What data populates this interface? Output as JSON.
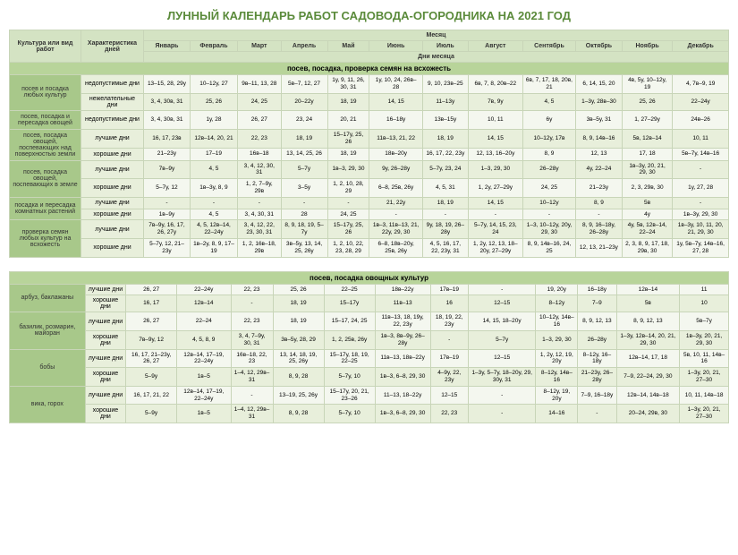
{
  "title": "ЛУННЫЙ КАЛЕНДАРЬ РАБОТ САДОВОДА-ОГОРОДНИКА НА 2021 ГОД",
  "headers": {
    "culture": "Культура или вид работ",
    "characteristic": "Характеристика дней",
    "month": "Месяц",
    "daysOfMonth": "Дни месяца",
    "months": [
      "Январь",
      "Февраль",
      "Март",
      "Апрель",
      "Май",
      "Июнь",
      "Июль",
      "Август",
      "Сентябрь",
      "Октябрь",
      "Ноябрь",
      "Декабрь"
    ]
  },
  "section1": {
    "title": "посев, посадка, проверка семян на всхожесть",
    "groups": [
      {
        "label": "посев и посадка любых культур",
        "rows": [
          {
            "char": "недопустимые дни",
            "cells": [
              "13–15, 28, 29у",
              "10–12у, 27",
              "9в–11, 13, 28",
              "5в–7, 12, 27",
              "1у, 9, 11, 26, 30, 31",
              "1у, 10, 24, 26в–28",
              "9, 10, 23в–25",
              "6в, 7, 8, 20в–22",
              "6в, 7, 17, 18, 20в, 21",
              "6, 14, 15, 20",
              "4в, 5у, 10–12у, 19",
              "4, 7в–9, 19"
            ]
          },
          {
            "char": "нежелательные дни",
            "cells": [
              "3, 4, 30в, 31",
              "25, 26",
              "24, 25",
              "20–22у",
              "18, 19",
              "14, 15",
              "11–13у",
              "7в, 9у",
              "4, 5",
              "1–3у, 28в–30",
              "25, 26",
              "22–24у"
            ]
          }
        ]
      },
      {
        "label": "посев, посадка и пересадка овощей",
        "rows": [
          {
            "char": "недопустимые дни",
            "cells": [
              "3, 4, 30в, 31",
              "1у, 28",
              "26, 27",
              "23, 24",
              "20, 21",
              "16–18у",
              "13в–15у",
              "10, 11",
              "6у",
              "3в–5у, 31",
              "1, 27–29у",
              "24в–26"
            ]
          }
        ]
      },
      {
        "label": "посев, посадка овощей, поспевающих над поверхностью земли",
        "rows": [
          {
            "char": "лучшие дни",
            "cells": [
              "16, 17, 23в",
              "12в–14, 20, 21",
              "22, 23",
              "18, 19",
              "15–17у, 25, 26",
              "11в–13, 21, 22",
              "18, 19",
              "14, 15",
              "10–12у, 17в",
              "8, 9, 14в–16",
              "5в, 12в–14",
              "10, 11"
            ]
          },
          {
            "char": "хорошие дни",
            "cells": [
              "21–23у",
              "17–19",
              "16в–18",
              "13, 14, 25, 26",
              "18, 19",
              "18в–20у",
              "16, 17, 22, 23у",
              "12, 13, 16–20у",
              "8, 9",
              "12, 13",
              "17, 18",
              "5в–7у, 14в–16"
            ]
          }
        ]
      },
      {
        "label": "посев, посадка овощей, поспевающих в земле",
        "rows": [
          {
            "char": "лучшие дни",
            "cells": [
              "7в–9у",
              "4, 5",
              "3, 4, 12, 30, 31",
              "5–7у",
              "1в–3, 29, 30",
              "9у, 26–28у",
              "5–7у, 23, 24",
              "1–3, 29, 30",
              "26–28у",
              "4у, 22–24",
              "1в–3у, 20, 21, 29, 30",
              "-"
            ]
          },
          {
            "char": "хорошие дни",
            "cells": [
              "5–7у, 12",
              "1в–3у, 8, 9",
              "1, 2, 7–9у, 29в",
              "3–5у",
              "1, 2, 10, 28, 29",
              "6–8, 25в, 26у",
              "4, 5, 31",
              "1, 2у, 27–29у",
              "24, 25",
              "21–23у",
              "2, 3, 29в, 30",
              "1у, 27, 28"
            ]
          }
        ]
      },
      {
        "label": "посадка и пересадка комнатных растений",
        "rows": [
          {
            "char": "лучшие дни",
            "cells": [
              "-",
              "-",
              "-",
              "-",
              "-",
              "21, 22у",
              "18, 19",
              "14, 15",
              "10–12у",
              "8, 9",
              "5в",
              "-"
            ]
          },
          {
            "char": "хорошие дни",
            "cells": [
              "1в–9у",
              "4, 5",
              "3, 4, 30, 31",
              "28",
              "24, 25",
              "-",
              "-",
              "-",
              "-",
              "-",
              "4у",
              "1в–3у, 29, 30"
            ]
          }
        ]
      },
      {
        "label": "проверка семян любых культур на всхожесть",
        "rows": [
          {
            "char": "лучшие дни",
            "cells": [
              "7в–9у, 16, 17, 26, 27у",
              "4, 5, 12в–14, 22–24у",
              "3, 4, 12, 22, 23, 30, 31",
              "8, 9, 18, 19, 5–7у",
              "15–17у, 25, 26",
              "1в–3, 11в–13, 21, 22у, 29, 30",
              "9у, 18, 19, 26–28у",
              "5–7у, 14, 15, 23, 24",
              "1–3, 10–12у, 20у, 29, 30",
              "8, 9, 16–18у, 26–28у",
              "4у, 5в, 12в–14, 22–24",
              "1в–3у, 10, 11, 20, 21, 29, 30"
            ]
          },
          {
            "char": "хорошие дни",
            "cells": [
              "5–7у, 12, 21–23у",
              "1в–2у, 8, 9, 17–19",
              "1, 2, 16в–18, 29в",
              "3в–5у, 13, 14, 25, 26у",
              "1, 2, 10, 22, 23, 28, 29",
              "6–8, 18в–20у, 25в, 26у",
              "4, 5, 16, 17, 22, 23у, 31",
              "1, 2у, 12, 13, 18–20у, 27–29у",
              "8, 9, 14в–16, 24, 25",
              "12, 13, 21–23у",
              "2, 3, 8, 9, 17, 18, 29в, 30",
              "1у, 5в–7у, 14в–16, 27, 28"
            ]
          }
        ]
      }
    ]
  },
  "section2": {
    "title": "посев, посадка овощных культур",
    "groups": [
      {
        "label": "арбуз, баклажаны",
        "rows": [
          {
            "char": "лучшие дни",
            "cells": [
              "26, 27",
              "22–24у",
              "22, 23",
              "25, 26",
              "22–25",
              "18в–22у",
              "17в–19",
              "-",
              "19, 20у",
              "16–18у",
              "12в–14",
              "11"
            ]
          },
          {
            "char": "хорошие дни",
            "cells": [
              "16, 17",
              "12в–14",
              "-",
              "18, 19",
              "15–17у",
              "11в–13",
              "16",
              "12–15",
              "8–12у",
              "7–9",
              "5в",
              "10"
            ]
          }
        ]
      },
      {
        "label": "базилик, розмарин, майоран",
        "rows": [
          {
            "char": "лучшие дни",
            "cells": [
              "26, 27",
              "22–24",
              "22, 23",
              "18, 19",
              "15–17, 24, 25",
              "11в–13, 18, 19у, 22, 23у",
              "18, 19, 22, 23у",
              "14, 15, 18–20у",
              "10–12у, 14в–16",
              "8, 9, 12, 13",
              "8, 9, 12, 13",
              "5в–7у"
            ]
          },
          {
            "char": "хорошие дни",
            "cells": [
              "7в–9у, 12",
              "4, 5, 8, 9",
              "3, 4, 7–9у, 30, 31",
              "3в–5у, 28, 29",
              "1, 2, 25в, 26у",
              "1в–3, 8в–9у, 26–28у",
              "-",
              "5–7у",
              "1–3, 29, 30",
              "26–28у",
              "1–3у, 12в–14, 20, 21, 29, 30",
              "1в–3у, 20, 21, 29, 30"
            ]
          }
        ]
      },
      {
        "label": "бобы",
        "rows": [
          {
            "char": "лучшие дни",
            "cells": [
              "16, 17, 21–23у, 26, 27",
              "12в–14, 17–19, 22–24у",
              "16в–18, 22, 23",
              "13, 14, 18, 19, 25, 26у",
              "15–17у, 18, 19, 22–25",
              "11в–13, 18в–22у",
              "17в–19",
              "12–15",
              "1, 2у, 12, 19, 20у",
              "8–12у, 16–18у",
              "12в–14, 17, 18",
              "5в, 10, 11, 14в–16"
            ]
          },
          {
            "char": "хорошие дни",
            "cells": [
              "5–9у",
              "1в–5",
              "1–4, 12, 29в–31",
              "8, 9, 28",
              "5–7у, 10",
              "1в–3, 6–8, 29, 30",
              "4–9у, 22, 23у",
              "1–3у, 5–7у, 18–20у, 29, 30у, 31",
              "8–12у, 14в–16",
              "21–23у, 26–28у",
              "7–9, 22–24, 29, 30",
              "1–3у, 20, 21, 27–30"
            ]
          }
        ]
      },
      {
        "label": "вика, горох",
        "rows": [
          {
            "char": "лучшие дни",
            "cells": [
              "16, 17, 21, 22",
              "12в–14, 17–19, 22–24у",
              "-",
              "13–19, 25, 26у",
              "15–17у, 20, 21, 23–26",
              "11–13, 18–22у",
              "12–15",
              "-",
              "8–12у, 19, 20у",
              "7–9, 16–18у",
              "12в–14, 14в–18",
              "10, 11, 14в–18"
            ]
          },
          {
            "char": "хорошие дни",
            "cells": [
              "5–9у",
              "1в–5",
              "1–4, 12, 29в–31",
              "8, 9, 28",
              "5–7у, 10",
              "1в–3, 6–8, 29, 30",
              "22, 23",
              "-",
              "14–16",
              "-",
              "20–24, 29в, 30",
              "1–3у, 20, 21, 27–30"
            ]
          }
        ]
      }
    ]
  }
}
